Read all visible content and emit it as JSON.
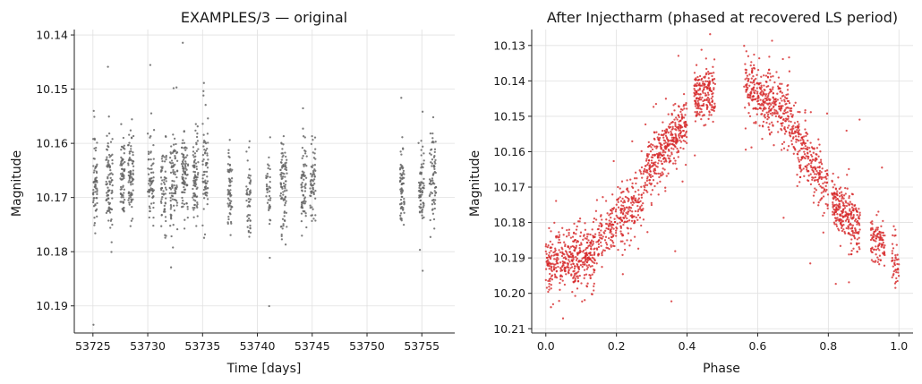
{
  "chart_data": [
    {
      "type": "scatter",
      "title": "EXAMPLES/3 — original",
      "xlabel": "Time [days]",
      "ylabel": "Magnitude",
      "xlim": [
        53723.3,
        53758.0
      ],
      "ylim": [
        10.195,
        10.139
      ],
      "y_inverted": true,
      "xticks": [
        53725,
        53730,
        53735,
        53740,
        53745,
        53750,
        53755
      ],
      "yticks": [
        10.14,
        10.15,
        10.16,
        10.17,
        10.18,
        10.19
      ],
      "grid": true,
      "point_color": "#666666",
      "observing_nights": [
        {
          "x": [
            53725.0,
            53725.4
          ],
          "mean": 10.168,
          "spread": 0.004,
          "n": 70
        },
        {
          "x": [
            53726.2,
            53726.8
          ],
          "mean": 10.167,
          "spread": 0.004,
          "n": 90
        },
        {
          "x": [
            53727.5,
            53727.9
          ],
          "mean": 10.166,
          "spread": 0.004,
          "n": 70
        },
        {
          "x": [
            53728.2,
            53728.7
          ],
          "mean": 10.166,
          "spread": 0.004,
          "n": 80
        },
        {
          "x": [
            53730.0,
            53730.6
          ],
          "mean": 10.167,
          "spread": 0.004,
          "n": 70
        },
        {
          "x": [
            53731.2,
            53731.7
          ],
          "mean": 10.168,
          "spread": 0.004,
          "n": 60
        },
        {
          "x": [
            53732.0,
            53732.7
          ],
          "mean": 10.167,
          "spread": 0.004,
          "n": 90
        },
        {
          "x": [
            53733.1,
            53733.7
          ],
          "mean": 10.166,
          "spread": 0.004,
          "n": 90
        },
        {
          "x": [
            53734.1,
            53734.6
          ],
          "mean": 10.166,
          "spread": 0.004,
          "n": 80
        },
        {
          "x": [
            53735.0,
            53735.5
          ],
          "mean": 10.166,
          "spread": 0.004,
          "n": 70
        },
        {
          "x": [
            53737.3,
            53737.7
          ],
          "mean": 10.168,
          "spread": 0.004,
          "n": 60
        },
        {
          "x": [
            53739.0,
            53739.4
          ],
          "mean": 10.169,
          "spread": 0.004,
          "n": 50
        },
        {
          "x": [
            53740.8,
            53741.2
          ],
          "mean": 10.169,
          "spread": 0.004,
          "n": 40
        },
        {
          "x": [
            53742.1,
            53742.7
          ],
          "mean": 10.167,
          "spread": 0.004,
          "n": 90
        },
        {
          "x": [
            53744.0,
            53744.5
          ],
          "mean": 10.168,
          "spread": 0.004,
          "n": 70
        },
        {
          "x": [
            53744.8,
            53745.3
          ],
          "mean": 10.167,
          "spread": 0.004,
          "n": 60
        },
        {
          "x": [
            53753.0,
            53753.4
          ],
          "mean": 10.168,
          "spread": 0.004,
          "n": 70
        },
        {
          "x": [
            53754.7,
            53755.2
          ],
          "mean": 10.168,
          "spread": 0.004,
          "n": 70
        },
        {
          "x": [
            53755.7,
            53756.3
          ],
          "mean": 10.167,
          "spread": 0.004,
          "n": 70
        }
      ]
    },
    {
      "type": "scatter",
      "title": "After Injectharm (phased at recovered LS period)",
      "xlabel": "Phase",
      "ylabel": "Magnitude",
      "xlim": [
        -0.04,
        1.04
      ],
      "ylim": [
        10.2112,
        10.1255
      ],
      "y_inverted": true,
      "xticks": [
        0.0,
        0.2,
        0.4,
        0.6,
        0.8,
        1.0
      ],
      "yticks": [
        10.13,
        10.14,
        10.15,
        10.16,
        10.17,
        10.18,
        10.19,
        10.2,
        10.21
      ],
      "grid": true,
      "point_color": "#d62728",
      "phase_clusters": [
        {
          "x": [
            0.0,
            0.14
          ],
          "trend": [
            10.191,
            10.189
          ],
          "spread": 0.0045,
          "n": 420
        },
        {
          "x": [
            0.14,
            0.28
          ],
          "trend": [
            10.186,
            10.172
          ],
          "spread": 0.004,
          "n": 300
        },
        {
          "x": [
            0.28,
            0.4
          ],
          "trend": [
            10.166,
            10.151
          ],
          "spread": 0.004,
          "n": 360
        },
        {
          "x": [
            0.42,
            0.48
          ],
          "trend": [
            10.144,
            10.143
          ],
          "spread": 0.004,
          "n": 200
        },
        {
          "x": [
            0.56,
            0.7
          ],
          "trend": [
            10.141,
            10.15
          ],
          "spread": 0.004,
          "n": 380
        },
        {
          "x": [
            0.7,
            0.8
          ],
          "trend": [
            10.155,
            10.17
          ],
          "spread": 0.004,
          "n": 240
        },
        {
          "x": [
            0.81,
            0.89
          ],
          "trend": [
            10.174,
            10.182
          ],
          "spread": 0.004,
          "n": 260
        },
        {
          "x": [
            0.92,
            0.96
          ],
          "trend": [
            10.184,
            10.186
          ],
          "spread": 0.0035,
          "n": 100
        },
        {
          "x": [
            0.98,
            1.0
          ],
          "trend": [
            10.19,
            10.192
          ],
          "spread": 0.004,
          "n": 45
        }
      ]
    }
  ]
}
